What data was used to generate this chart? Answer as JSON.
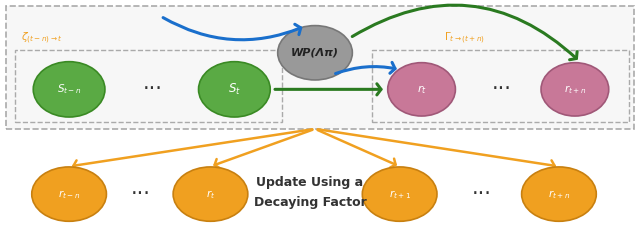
{
  "fig_width": 6.4,
  "fig_height": 2.37,
  "green_color": "#5aaa44",
  "green_edge": "#3a8a24",
  "pink_color": "#c87898",
  "pink_edge": "#a05878",
  "gray_color": "#999999",
  "gray_edge": "#777777",
  "orange_color": "#f0a020",
  "orange_edge": "#c88010",
  "blue_arrow": "#1a6fcc",
  "dark_green_arrow": "#2a7a20",
  "orange_arrow": "#f0a020",
  "box_color": "#aaaaaa",
  "wp_label": "WP(Λπ)",
  "zeta_label": "$\\zeta_{(t-n) \\to t}$",
  "gamma_label": "$\\Gamma_{t \\to (t+n)}$",
  "update_line1": "Update Using a",
  "update_line2": "Decaying Factor",
  "label_color": "#f0a020",
  "dot_color": "#333333"
}
